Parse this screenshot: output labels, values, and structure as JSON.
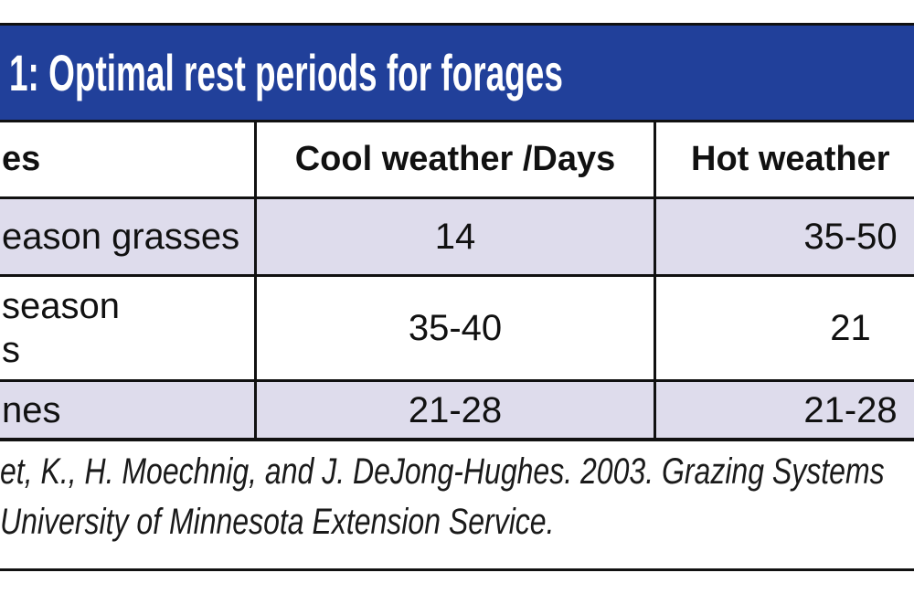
{
  "page": {
    "background": "#ffffff",
    "rule_color": "#111111"
  },
  "title_bar": {
    "text": "1: Optimal rest periods for forages",
    "background": "#21409a",
    "text_color": "#ffffff"
  },
  "table": {
    "border_color": "#111111",
    "stripe_color": "#dedcec",
    "header": {
      "forages": "es",
      "cool": "Cool weather /Days",
      "hot": "Hot weather"
    },
    "rows": [
      {
        "forage_lines": [
          "eason grasses"
        ],
        "cool_days": "14",
        "hot_days": "35-50"
      },
      {
        "forage_lines": [
          "season",
          "s"
        ],
        "cool_days": "35-40",
        "hot_days": "21"
      },
      {
        "forage_lines": [
          "nes"
        ],
        "cool_days": "21-28",
        "hot_days": "21-28"
      }
    ]
  },
  "citation": {
    "line1": "et, K., H. Moechnig, and J. DeJong-Hughes. 2003. Grazing Systems",
    "line2": "University of Minnesota Extension Service."
  }
}
